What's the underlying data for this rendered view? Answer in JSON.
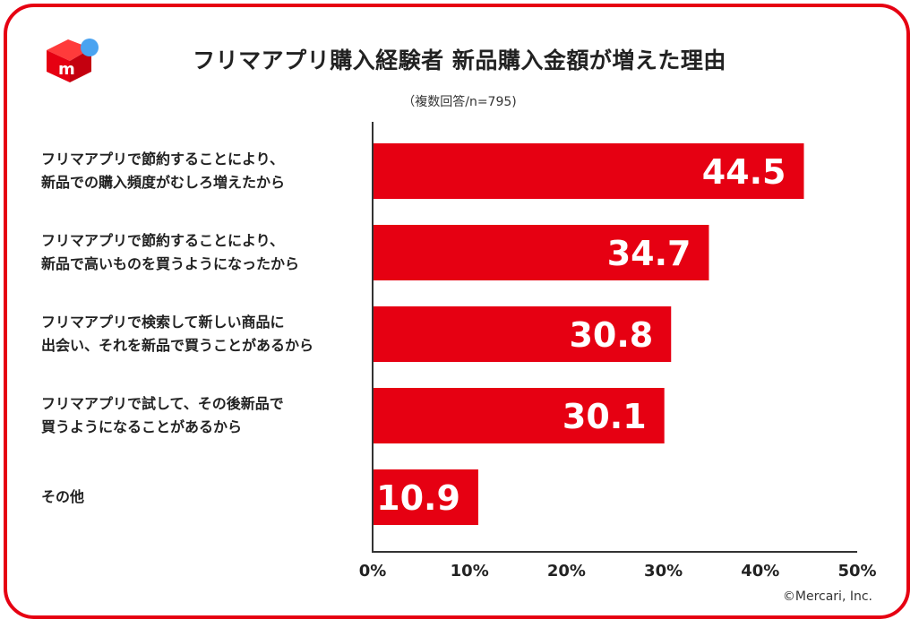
{
  "header": {
    "title": "フリマアプリ購入経験者 新品購入金額が増えた理由",
    "subtitle": "（複数回答/n=795)",
    "logo_letter": "m"
  },
  "footer": {
    "copyright": "©Mercari, Inc."
  },
  "colors": {
    "accent": "#e60012",
    "logo_dot": "#4aa3f0",
    "text": "#222222"
  },
  "chart_data": {
    "type": "bar",
    "orientation": "horizontal",
    "categories": [
      "フリマアプリで節約することにより、\n新品での購入頻度がむしろ増えたから",
      "フリマアプリで節約することにより、\n新品で高いものを買うようになったから",
      "フリマアプリで検索して新しい商品に\n出会い、それを新品で買うことがあるから",
      "フリマアプリで試して、その後新品で\n買うようになることがあるから",
      "その他"
    ],
    "values": [
      44.5,
      34.7,
      30.8,
      30.1,
      10.9
    ],
    "value_labels": [
      "44.5",
      "34.7",
      "30.8",
      "30.1",
      "10.9"
    ],
    "xlim": [
      0,
      50
    ],
    "x_ticks": [
      "0%",
      "10%",
      "20%",
      "30%",
      "40%",
      "50%"
    ],
    "grid": false,
    "legend": "none",
    "bar_color": "#e60012"
  }
}
